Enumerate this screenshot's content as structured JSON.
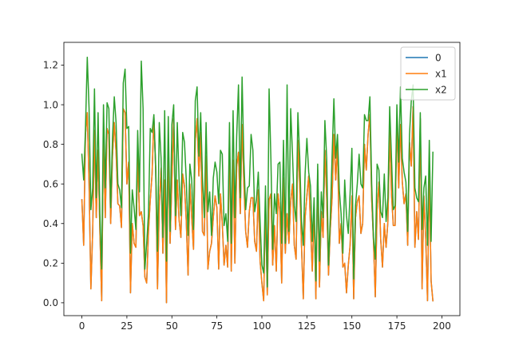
{
  "chart_data": {
    "type": "line",
    "title": "",
    "xlabel": "",
    "ylabel": "",
    "xlim": [
      -10,
      210
    ],
    "ylim": [
      -0.065,
      1.315
    ],
    "xticks": [
      0,
      25,
      50,
      75,
      100,
      125,
      150,
      175,
      200
    ],
    "yticks": [
      0.0,
      0.2,
      0.4,
      0.6,
      0.8,
      1.0,
      1.2
    ],
    "grid": false,
    "legend": "top-right",
    "series": [
      {
        "name": "0",
        "color": "#1f77b4",
        "x_start": 0,
        "values": [
          0.52,
          0.29,
          0.85,
          0.96,
          0.6,
          0.07,
          0.36,
          0.87,
          0.43,
          0.77,
          0.36,
          0.01,
          0.86,
          0.43,
          0.88,
          0.85,
          0.4,
          0.74,
          0.91,
          0.76,
          0.5,
          0.49,
          0.38,
          0.98,
          0.96,
          0.6,
          0.71,
          0.05,
          0.4,
          0.3,
          0.28,
          0.74,
          0.44,
          0.46,
          0.39,
          0.13,
          0.1,
          0.36,
          0.52,
          0.65,
          0.94,
          0.67,
          0.07,
          0.49,
          0.68,
          0.25,
          0.62,
          0.0,
          0.8,
          0.3,
          0.62,
          0.93,
          0.37,
          0.62,
          0.42,
          0.33,
          0.65,
          0.59,
          0.41,
          0.14,
          0.6,
          0.43,
          0.27,
          0.82,
          0.93,
          0.64,
          0.86,
          0.36,
          0.34,
          0.74,
          0.17,
          0.26,
          0.3,
          0.43,
          0.54,
          0.48,
          0.17,
          0.55,
          0.4,
          0.19,
          0.29,
          0.18,
          0.84,
          0.16,
          0.72,
          0.2,
          0.69,
          0.76,
          0.45,
          0.9,
          0.6,
          0.36,
          0.28,
          0.46,
          0.53,
          0.53,
          0.31,
          0.26,
          0.57,
          0.21,
          0.1,
          0.01,
          0.51,
          0.04,
          0.52,
          0.55,
          0.19,
          0.39,
          0.16,
          0.55,
          0.46,
          0.1,
          0.63,
          0.25,
          0.45,
          0.3,
          0.51,
          0.6,
          0.29,
          0.22,
          0.82,
          0.6,
          0.29,
          0.02,
          0.43,
          0.54,
          0.64,
          0.39,
          0.16,
          0.47,
          0.02,
          0.67,
          0.08,
          0.46,
          0.33,
          0.77,
          0.53,
          0.14,
          0.37,
          0.53,
          0.85,
          0.62,
          0.8,
          0.3,
          0.4,
          0.18,
          0.2,
          0.05,
          0.19,
          0.29,
          0.54,
          0.02,
          0.43,
          0.51,
          0.54,
          0.35,
          0.4,
          0.8,
          0.67,
          0.85,
          0.95,
          0.52,
          0.31,
          0.03,
          0.47,
          0.61,
          0.32,
          0.18,
          0.4,
          0.28,
          0.41,
          0.87,
          0.55,
          0.39,
          0.39,
          0.93,
          0.58,
          0.9,
          0.61,
          0.5,
          0.55,
          0.29,
          0.81,
          0.69,
          0.99,
          0.28,
          0.46,
          0.32,
          0.93,
          0.07,
          0.54,
          0.33,
          0.01,
          0.67,
          0.11,
          0.01
        ]
      },
      {
        "name": "x1",
        "color": "#ff7f0e",
        "x_start": 0,
        "values": [
          0.52,
          0.29,
          0.85,
          0.96,
          0.6,
          0.07,
          0.36,
          0.87,
          0.43,
          0.77,
          0.36,
          0.01,
          0.86,
          0.43,
          0.88,
          0.85,
          0.4,
          0.74,
          0.91,
          0.76,
          0.5,
          0.49,
          0.38,
          0.98,
          0.96,
          0.6,
          0.71,
          0.05,
          0.4,
          0.3,
          0.28,
          0.74,
          0.44,
          0.46,
          0.39,
          0.13,
          0.1,
          0.36,
          0.52,
          0.65,
          0.94,
          0.67,
          0.07,
          0.49,
          0.68,
          0.25,
          0.62,
          0.0,
          0.8,
          0.3,
          0.62,
          0.93,
          0.37,
          0.62,
          0.42,
          0.33,
          0.65,
          0.59,
          0.41,
          0.14,
          0.6,
          0.43,
          0.27,
          0.82,
          0.93,
          0.64,
          0.86,
          0.36,
          0.34,
          0.74,
          0.17,
          0.26,
          0.3,
          0.43,
          0.54,
          0.48,
          0.17,
          0.55,
          0.4,
          0.19,
          0.29,
          0.18,
          0.84,
          0.16,
          0.72,
          0.2,
          0.69,
          0.76,
          0.45,
          0.9,
          0.6,
          0.36,
          0.28,
          0.46,
          0.53,
          0.53,
          0.31,
          0.26,
          0.57,
          0.21,
          0.1,
          0.01,
          0.51,
          0.04,
          0.52,
          0.55,
          0.19,
          0.39,
          0.16,
          0.55,
          0.46,
          0.1,
          0.63,
          0.25,
          0.45,
          0.3,
          0.51,
          0.6,
          0.29,
          0.22,
          0.82,
          0.6,
          0.29,
          0.02,
          0.43,
          0.54,
          0.64,
          0.39,
          0.16,
          0.47,
          0.02,
          0.67,
          0.08,
          0.46,
          0.33,
          0.77,
          0.53,
          0.14,
          0.37,
          0.53,
          0.85,
          0.62,
          0.8,
          0.3,
          0.4,
          0.18,
          0.2,
          0.05,
          0.19,
          0.29,
          0.54,
          0.02,
          0.43,
          0.51,
          0.54,
          0.35,
          0.4,
          0.8,
          0.67,
          0.85,
          0.95,
          0.52,
          0.31,
          0.03,
          0.47,
          0.61,
          0.32,
          0.18,
          0.4,
          0.28,
          0.41,
          0.87,
          0.55,
          0.39,
          0.39,
          0.93,
          0.58,
          0.9,
          0.61,
          0.5,
          0.55,
          0.29,
          0.81,
          0.69,
          0.99,
          0.28,
          0.46,
          0.32,
          0.93,
          0.07,
          0.54,
          0.33,
          0.01,
          0.67,
          0.11,
          0.01
        ]
      },
      {
        "name": "x2",
        "color": "#2ca02c",
        "x_start": 0,
        "values": [
          0.75,
          0.62,
          0.88,
          1.24,
          0.98,
          0.47,
          0.58,
          1.08,
          0.53,
          0.96,
          0.45,
          0.17,
          1.0,
          0.58,
          1.01,
          0.98,
          0.48,
          0.83,
          1.04,
          0.91,
          0.6,
          0.57,
          0.48,
          1.11,
          1.18,
          0.88,
          0.89,
          0.25,
          0.57,
          0.48,
          0.37,
          0.87,
          0.56,
          1.22,
          0.98,
          0.17,
          0.3,
          0.45,
          0.88,
          0.86,
          0.95,
          0.69,
          0.26,
          0.91,
          0.73,
          0.33,
          0.97,
          0.21,
          0.94,
          0.36,
          0.9,
          1.0,
          0.44,
          0.91,
          0.62,
          0.44,
          0.86,
          0.81,
          0.62,
          0.34,
          0.7,
          0.62,
          0.37,
          1.02,
          1.09,
          0.74,
          0.96,
          0.63,
          0.43,
          0.91,
          0.46,
          0.56,
          0.34,
          0.63,
          0.71,
          0.66,
          0.5,
          0.77,
          0.75,
          0.39,
          0.45,
          0.31,
          0.91,
          0.3,
          0.97,
          0.43,
          0.84,
          1.1,
          0.53,
          1.14,
          0.72,
          0.47,
          0.58,
          0.59,
          0.85,
          0.77,
          0.46,
          0.52,
          0.66,
          0.41,
          0.19,
          0.15,
          0.59,
          0.08,
          1.08,
          0.73,
          0.27,
          0.55,
          0.45,
          0.7,
          0.71,
          0.3,
          0.82,
          0.3,
          1.1,
          0.36,
          0.98,
          0.75,
          0.49,
          0.41,
          0.96,
          0.74,
          0.41,
          0.29,
          0.65,
          0.83,
          0.66,
          0.59,
          0.31,
          0.53,
          0.11,
          0.7,
          0.21,
          0.56,
          0.43,
          0.92,
          0.73,
          0.19,
          0.43,
          0.74,
          1.03,
          0.73,
          0.85,
          0.57,
          0.45,
          0.25,
          0.62,
          0.44,
          0.35,
          0.55,
          0.78,
          0.12,
          0.49,
          0.6,
          0.75,
          0.6,
          0.58,
          0.95,
          0.92,
          0.92,
          1.04,
          0.6,
          0.33,
          0.22,
          0.7,
          0.67,
          0.46,
          0.43,
          0.65,
          0.41,
          0.53,
          0.99,
          0.73,
          0.47,
          0.49,
          1.0,
          0.71,
          1.09,
          0.73,
          0.66,
          0.61,
          0.36,
          0.85,
          1.02,
          1.1,
          0.58,
          0.53,
          0.51,
          0.96,
          0.37,
          0.58,
          0.64,
          0.29,
          0.82,
          0.31,
          0.76
        ]
      }
    ]
  }
}
